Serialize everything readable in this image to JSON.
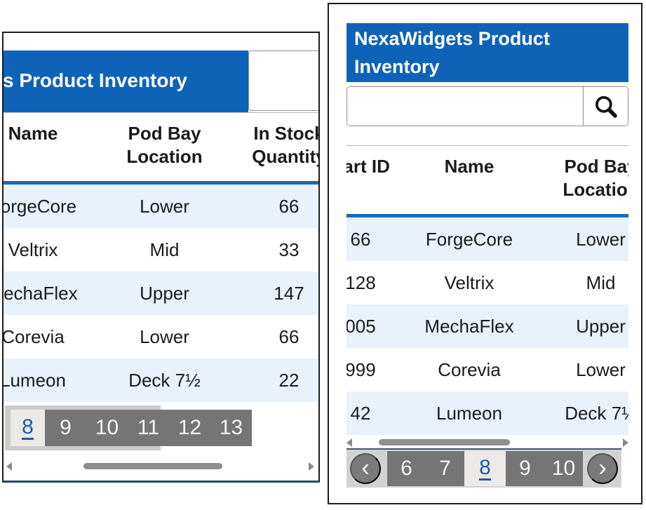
{
  "widget": {
    "title": "NexaWidgets Product Inventory",
    "search": {
      "value": "",
      "placeholder": ""
    },
    "table": {
      "columns": [
        "Part ID",
        "Name",
        "Pod Bay Location",
        "In Stock Quantity"
      ],
      "rows": [
        [
          "66",
          "ForgeCore",
          "Lower",
          "66"
        ],
        [
          "128",
          "Veltrix",
          "Mid",
          "33"
        ],
        [
          "005",
          "MechaFlex",
          "Upper",
          "147"
        ],
        [
          "999",
          "Corevia",
          "Lower",
          "66"
        ],
        [
          "42",
          "Lumeon",
          "Deck 7½",
          "22"
        ]
      ]
    }
  },
  "left_panel": {
    "pagination": {
      "active": "8",
      "pages": [
        "8",
        "9",
        "10",
        "11",
        "12",
        "13"
      ]
    }
  },
  "right_panel": {
    "pagination": {
      "prev": "‹",
      "next": "›",
      "active": "8",
      "pages": [
        "6",
        "7",
        "8",
        "9",
        "10"
      ]
    }
  },
  "colors": {
    "header_blue": "#0e63b8",
    "accent_blue": "#0f6cbd",
    "link_blue": "#1b5cab",
    "row_alt_blue": "#e9f1fb",
    "pager_dark": "#757575",
    "pager_light_bar": "#d2d2d2",
    "active_cell_bg": "#eceae6",
    "scroll_thumb": "#8f8f8f"
  }
}
